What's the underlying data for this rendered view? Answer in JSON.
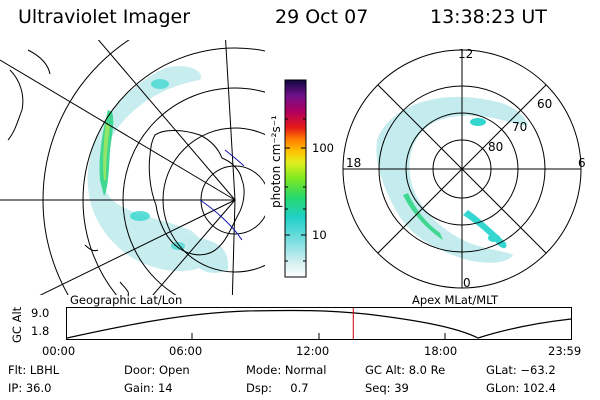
{
  "header": {
    "title": "Ultraviolet Imager",
    "date": "29 Oct 07",
    "time": "13:38:23 UT"
  },
  "colorbar": {
    "unit_label": "photon cm⁻²s⁻¹",
    "ticks": [
      "100",
      "10"
    ]
  },
  "left_panel": {
    "caption": "Geographic Lat/Lon"
  },
  "right_panel": {
    "caption": "Apex MLat/MLT",
    "mlt_labels": {
      "top": "12",
      "left": "18",
      "right": "6",
      "bottom": "0"
    },
    "lat_labels": [
      "60",
      "70",
      "80"
    ]
  },
  "altitude_plot": {
    "ylabel": "GC Alt",
    "yticks": [
      "9.0",
      "1.8"
    ],
    "xticks": [
      "00:00",
      "06:00",
      "12:00",
      "18:00",
      "23:59"
    ],
    "current_time_fraction": 0.568
  },
  "info": {
    "filter": "Flt: LBHL",
    "ip": "IP: 36.0",
    "door": "Door: Open",
    "gain": "Gain: 14",
    "mode": "Mode: Normal",
    "dsp": "Dsp:     0.7",
    "gc_alt": "GC Alt: 8.0 Re",
    "seq": "Seq: 39",
    "glat": "GLat: −63.2",
    "glon": "GLon: 102.4"
  },
  "colors": {
    "auroral_green": "#40d890",
    "auroral_cyan": "#36d6d0",
    "auroral_faint": "#c4ecee",
    "marker_red": "#d00000",
    "coast_blue": "#1010b0"
  }
}
